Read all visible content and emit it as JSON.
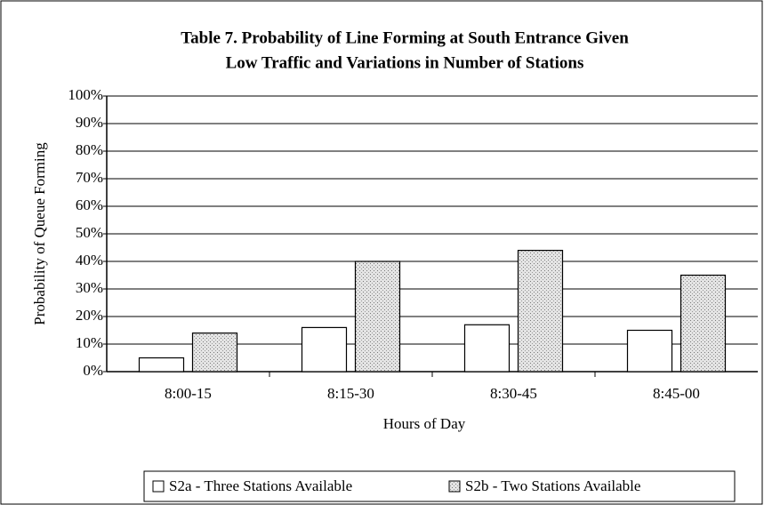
{
  "chart_data": {
    "type": "bar",
    "title": [
      "Table 7. Probability of Line Forming at South Entrance Given",
      "Low Traffic and Variations in Number of Stations"
    ],
    "x_label": "Hours of Day",
    "y_label": "Probability of Queue Forming",
    "categories": [
      "8:00-15",
      "8:15-30",
      "8:30-45",
      "8:45-00"
    ],
    "series": [
      {
        "name": "S2a - Three Stations Available",
        "color": "#ffffff",
        "pattern": "none",
        "values": [
          5,
          16,
          17,
          15
        ]
      },
      {
        "name": "S2b - Two Stations Available",
        "color": "#e4e4e4",
        "pattern": "dots",
        "values": [
          14,
          40,
          44,
          35
        ]
      }
    ],
    "ylim": [
      0,
      100
    ],
    "yticks": [
      {
        "value": 0,
        "label": "0%"
      },
      {
        "value": 10,
        "label": "10%"
      },
      {
        "value": 20,
        "label": "20%"
      },
      {
        "value": 30,
        "label": "30%"
      },
      {
        "value": 40,
        "label": "40%"
      },
      {
        "value": 50,
        "label": "50%"
      },
      {
        "value": 60,
        "label": "60%"
      },
      {
        "value": 70,
        "label": "70%"
      },
      {
        "value": 80,
        "label": "80%"
      },
      {
        "value": 90,
        "label": "90%"
      },
      {
        "value": 100,
        "label": "100%"
      }
    ],
    "grid": true,
    "legend": "bottom"
  }
}
